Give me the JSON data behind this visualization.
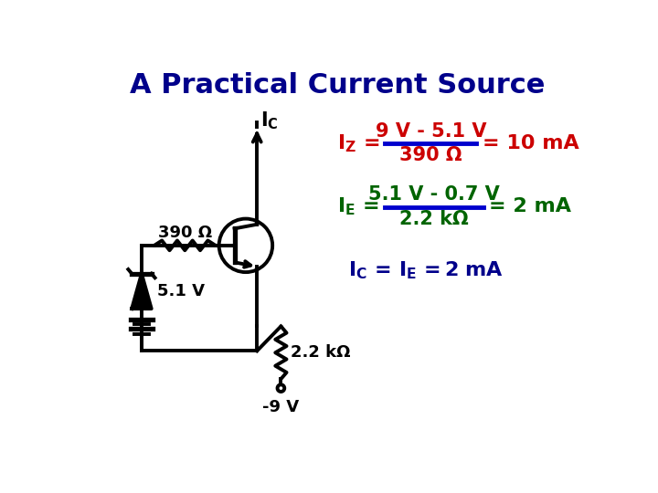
{
  "title": "A Practical Current Source",
  "title_color": "#00008B",
  "title_fontsize": 22,
  "bg_color": "#FFFFFF",
  "circuit_color": "#000000",
  "eq1_color": "#CC0000",
  "eq2_color": "#006400",
  "eq3_color": "#00008B",
  "fraction_line_color": "#0000CD",
  "eq1_num": "9 V - 5.1 V",
  "eq1_den": "390 Ω",
  "eq1_result": "= 10 mA",
  "eq2_num": "5.1 V - 0.7 V",
  "eq2_den": "2.2 kΩ",
  "eq2_result": "= 2 mA",
  "label_390": "390 Ω",
  "label_51": "5.1 V",
  "label_22k": "2.2 kΩ",
  "label_9V": "-9 V"
}
